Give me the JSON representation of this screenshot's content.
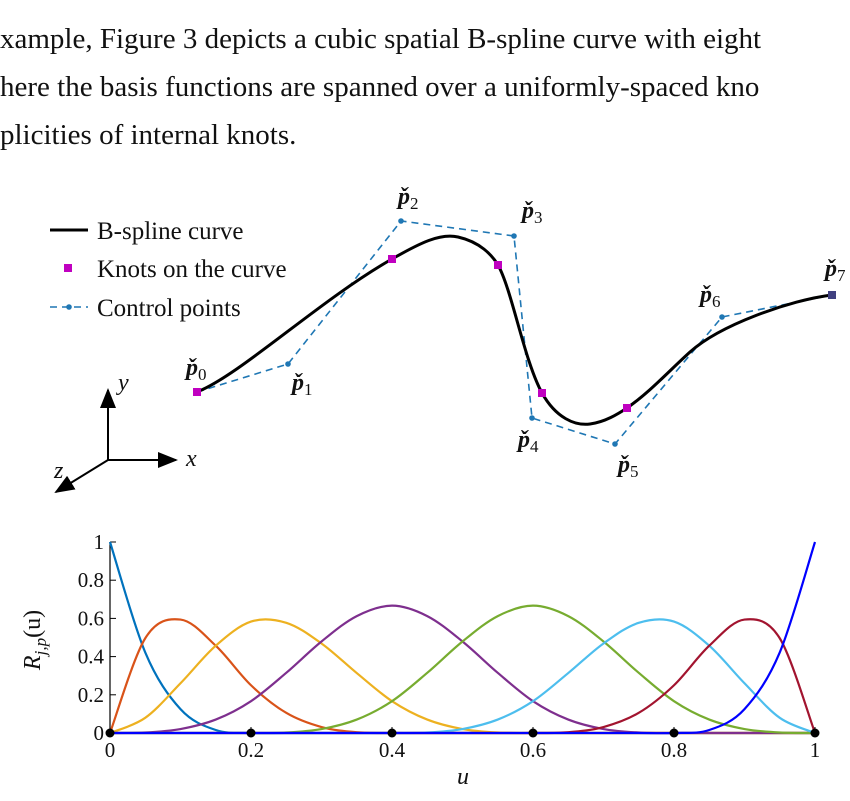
{
  "text": {
    "lines": [
      "xample, Figure 3 depicts a cubic spatial B-spline curve with eight",
      "here the basis functions are spanned over a uniformly-spaced kno",
      "plicities of internal knots."
    ]
  },
  "figure": {
    "legend": [
      "B-spline curve",
      "Knots on the curve",
      "Control points"
    ],
    "control_point_labels": [
      {
        "symbol": "p̌",
        "index": "0"
      },
      {
        "symbol": "p̌",
        "index": "1"
      },
      {
        "symbol": "p̌",
        "index": "2"
      },
      {
        "symbol": "p̌",
        "index": "3"
      },
      {
        "symbol": "p̌",
        "index": "4"
      },
      {
        "symbol": "p̌",
        "index": "5"
      },
      {
        "symbol": "p̌",
        "index": "6"
      },
      {
        "symbol": "p̌",
        "index": "7"
      }
    ],
    "axes_labels": [
      "y",
      "x",
      "z"
    ]
  },
  "chart_data": {
    "type": "line",
    "xlabel": "u",
    "ylabel": [
      "R",
      "j,p",
      "(u)"
    ],
    "x": [
      0,
      0.05,
      0.1,
      0.15,
      0.2,
      0.25,
      0.3,
      0.35,
      0.4,
      0.45,
      0.5,
      0.55,
      0.6,
      0.65,
      0.7,
      0.75,
      0.8,
      0.85,
      0.9,
      0.95,
      1
    ],
    "series": [
      {
        "color": "#0072BD",
        "values": [
          1,
          0.4219,
          0.125,
          0.0156,
          0,
          0,
          0,
          0,
          0,
          0,
          0,
          0,
          0,
          0,
          0,
          0,
          0,
          0,
          0,
          0,
          0
        ]
      },
      {
        "color": "#D95319",
        "values": [
          0,
          0.4961,
          0.5938,
          0.457,
          0.25,
          0.1055,
          0.0313,
          0.0039,
          0,
          0,
          0,
          0,
          0,
          0,
          0,
          0,
          0,
          0,
          0,
          0,
          0
        ]
      },
      {
        "color": "#EDB120",
        "values": [
          0,
          0.0794,
          0.2604,
          0.457,
          0.5833,
          0.5768,
          0.4688,
          0.3138,
          0.1667,
          0.0703,
          0.0208,
          0.0026,
          0,
          0,
          0,
          0,
          0,
          0,
          0,
          0,
          0
        ]
      },
      {
        "color": "#7E2F8E",
        "values": [
          0,
          0.0026,
          0.0208,
          0.0703,
          0.1667,
          0.3151,
          0.4792,
          0.612,
          0.6667,
          0.612,
          0.4792,
          0.3151,
          0.1667,
          0.0703,
          0.0208,
          0.0026,
          0,
          0,
          0,
          0,
          0
        ]
      },
      {
        "color": "#77AC30",
        "values": [
          0,
          0,
          0,
          0,
          0,
          0.0026,
          0.0208,
          0.0703,
          0.1667,
          0.3151,
          0.4792,
          0.612,
          0.6667,
          0.612,
          0.4792,
          0.3151,
          0.1667,
          0.0703,
          0.0208,
          0.0026,
          0
        ]
      },
      {
        "color": "#4DBEEE",
        "values": [
          0,
          0,
          0,
          0,
          0,
          0,
          0,
          0,
          0,
          0.0026,
          0.0208,
          0.0703,
          0.1667,
          0.3138,
          0.4688,
          0.5768,
          0.5833,
          0.457,
          0.2604,
          0.0794,
          0
        ]
      },
      {
        "color": "#A2142F",
        "values": [
          0,
          0,
          0,
          0,
          0,
          0,
          0,
          0,
          0,
          0,
          0,
          0,
          0,
          0.0039,
          0.0313,
          0.1055,
          0.25,
          0.457,
          0.5938,
          0.4961,
          0
        ]
      },
      {
        "color": "#0000FF",
        "values": [
          0,
          0,
          0,
          0,
          0,
          0,
          0,
          0,
          0,
          0,
          0,
          0,
          0,
          0,
          0,
          0,
          0,
          0.0156,
          0.125,
          0.4219,
          1
        ]
      }
    ],
    "knots": [
      0,
      0.2,
      0.4,
      0.6,
      0.8,
      1
    ],
    "knot_color": "#000000",
    "xlim": [
      0,
      1
    ],
    "ylim": [
      0,
      1
    ],
    "xticks": [
      0,
      0.2,
      0.4,
      0.6,
      0.8,
      1
    ],
    "yticks": [
      0,
      0.2,
      0.4,
      0.6,
      0.8,
      1
    ],
    "grid": false
  }
}
